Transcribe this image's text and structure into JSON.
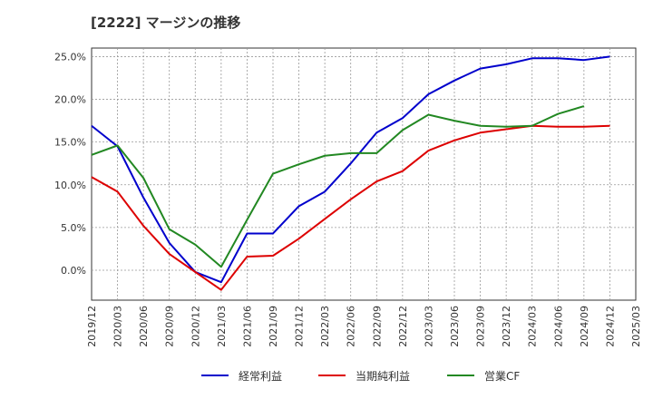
{
  "chart_data": {
    "type": "line",
    "title": "[2222]  マージンの推移",
    "x": [
      "2019/12",
      "2020/03",
      "2020/06",
      "2020/09",
      "2020/12",
      "2021/03",
      "2021/06",
      "2021/09",
      "2021/12",
      "2022/03",
      "2022/06",
      "2022/09",
      "2022/12",
      "2023/03",
      "2023/06",
      "2023/09",
      "2023/12",
      "2024/03",
      "2024/06",
      "2024/09",
      "2024/12",
      "2025/03"
    ],
    "ylim": [
      -3.5,
      26.0
    ],
    "yticks": [
      0,
      5,
      10,
      15,
      20,
      25
    ],
    "ytick_labels": [
      "0.0%",
      "5.0%",
      "10.0%",
      "15.0%",
      "20.0%",
      "25.0%"
    ],
    "grid": true,
    "legend_position": "bottom",
    "series": [
      {
        "name": "経常利益",
        "color": "#0000cc",
        "values": [
          16.9,
          14.5,
          8.5,
          3.2,
          -0.2,
          -1.4,
          4.3,
          4.3,
          7.5,
          9.2,
          12.5,
          16.1,
          17.8,
          20.6,
          22.2,
          23.6,
          24.1,
          24.8,
          24.8,
          24.6,
          25.0,
          null
        ]
      },
      {
        "name": "当期純利益",
        "color": "#dd0000",
        "values": [
          10.9,
          9.2,
          5.2,
          1.9,
          -0.2,
          -2.3,
          1.6,
          1.7,
          3.7,
          6.0,
          8.3,
          10.4,
          11.6,
          14.0,
          15.2,
          16.1,
          16.5,
          16.9,
          16.8,
          16.8,
          16.9,
          null
        ]
      },
      {
        "name": "営業CF",
        "color": "#228822",
        "values": [
          13.5,
          14.6,
          10.8,
          4.8,
          3.0,
          0.4,
          5.9,
          11.3,
          12.4,
          13.4,
          13.7,
          13.7,
          16.4,
          18.2,
          17.5,
          16.9,
          16.8,
          16.9,
          18.3,
          19.2,
          null,
          null
        ]
      }
    ]
  }
}
